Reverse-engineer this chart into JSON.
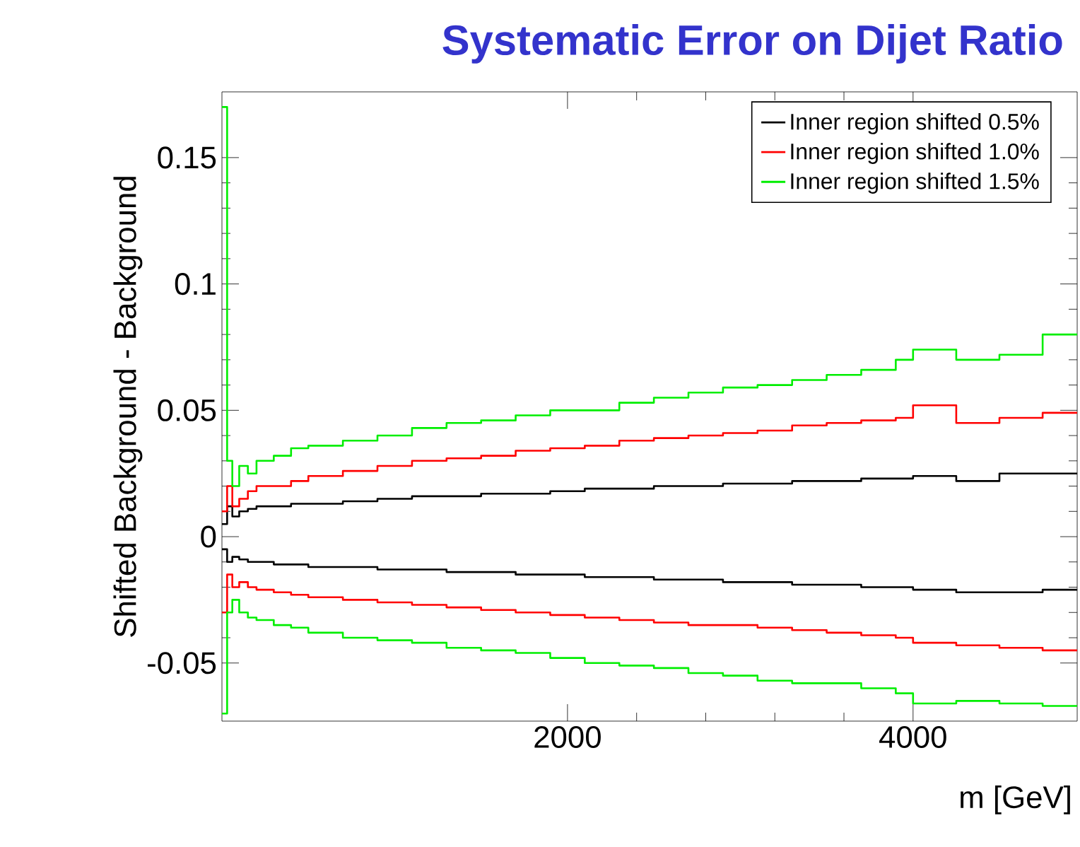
{
  "chart_data": {
    "type": "step",
    "title": "Systematic Error on Dijet Ratio",
    "xlabel": "m [GeV]",
    "ylabel": "Shifted Background - Background",
    "x": [
      0,
      30,
      60,
      100,
      150,
      200,
      300,
      400,
      500,
      700,
      900,
      1100,
      1300,
      1500,
      1700,
      1900,
      2100,
      2300,
      2500,
      2700,
      2900,
      3100,
      3300,
      3500,
      3700,
      3900,
      4000,
      4250,
      4500,
      4750,
      4950
    ],
    "series": [
      {
        "name": "Inner region shifted 0.5%",
        "color": "#000000",
        "values": [
          0.005,
          0.012,
          0.008,
          0.01,
          0.011,
          0.012,
          0.012,
          0.013,
          0.013,
          0.014,
          0.015,
          0.016,
          0.016,
          0.017,
          0.017,
          0.018,
          0.019,
          0.019,
          0.02,
          0.02,
          0.021,
          0.021,
          0.022,
          0.022,
          0.023,
          0.023,
          0.024,
          0.022,
          0.025,
          0.025,
          0.025
        ]
      },
      {
        "name": "Inner region shifted 1.0%",
        "color": "#ff0000",
        "values": [
          0.01,
          0.02,
          0.012,
          0.015,
          0.018,
          0.02,
          0.02,
          0.022,
          0.024,
          0.026,
          0.028,
          0.03,
          0.031,
          0.032,
          0.034,
          0.035,
          0.036,
          0.038,
          0.039,
          0.04,
          0.041,
          0.042,
          0.044,
          0.045,
          0.046,
          0.047,
          0.052,
          0.045,
          0.047,
          0.049,
          0.049
        ]
      },
      {
        "name": "Inner region shifted 1.5%",
        "color": "#00ee00",
        "values": [
          0.17,
          0.03,
          0.02,
          0.028,
          0.025,
          0.03,
          0.032,
          0.035,
          0.036,
          0.038,
          0.04,
          0.043,
          0.045,
          0.046,
          0.048,
          0.05,
          0.05,
          0.053,
          0.055,
          0.057,
          0.059,
          0.06,
          0.062,
          0.064,
          0.066,
          0.07,
          0.074,
          0.07,
          0.072,
          0.08,
          0.08
        ]
      },
      {
        "color": "#000000",
        "values": [
          -0.005,
          -0.01,
          -0.008,
          -0.009,
          -0.01,
          -0.01,
          -0.011,
          -0.011,
          -0.012,
          -0.012,
          -0.013,
          -0.013,
          -0.014,
          -0.014,
          -0.015,
          -0.015,
          -0.016,
          -0.016,
          -0.017,
          -0.017,
          -0.018,
          -0.018,
          -0.019,
          -0.019,
          -0.02,
          -0.02,
          -0.021,
          -0.022,
          -0.022,
          -0.021,
          -0.021
        ]
      },
      {
        "color": "#ff0000",
        "values": [
          -0.03,
          -0.015,
          -0.02,
          -0.018,
          -0.02,
          -0.021,
          -0.022,
          -0.023,
          -0.024,
          -0.025,
          -0.026,
          -0.027,
          -0.028,
          -0.029,
          -0.03,
          -0.031,
          -0.032,
          -0.033,
          -0.034,
          -0.035,
          -0.035,
          -0.036,
          -0.037,
          -0.038,
          -0.039,
          -0.04,
          -0.042,
          -0.043,
          -0.044,
          -0.045,
          -0.045
        ]
      },
      {
        "color": "#00ee00",
        "values": [
          -0.07,
          -0.03,
          -0.025,
          -0.03,
          -0.032,
          -0.033,
          -0.035,
          -0.036,
          -0.038,
          -0.04,
          -0.041,
          -0.042,
          -0.044,
          -0.045,
          -0.046,
          -0.048,
          -0.05,
          -0.051,
          -0.052,
          -0.054,
          -0.055,
          -0.057,
          -0.058,
          -0.058,
          -0.06,
          -0.062,
          -0.066,
          -0.065,
          -0.066,
          -0.067,
          -0.067
        ]
      }
    ],
    "xlim": [
      0,
      4950
    ],
    "ylim": [
      -0.073,
      0.176
    ],
    "xticks": [
      2000,
      4000
    ],
    "yticks": [
      -0.05,
      0,
      0.05,
      0.1,
      0.15
    ],
    "grid": false,
    "legend": "top right",
    "marker": "none",
    "line_style": "solid"
  }
}
